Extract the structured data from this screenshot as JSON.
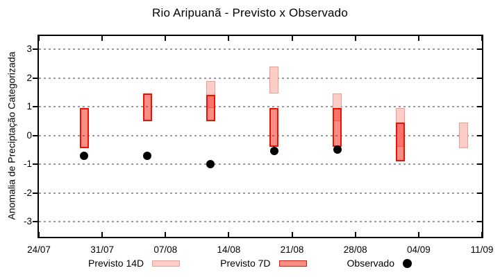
{
  "chart_data": {
    "type": "bar",
    "subtype": "floating-range-bars-with-scatter",
    "title": "Rio Aripuanã - Previsto x Observado",
    "ylabel": "Anomalia de Preciptação Categorizada",
    "xlabel": "",
    "ylim": [
      -3.5,
      3.5
    ],
    "yticks": [
      3,
      2,
      1,
      0,
      -1,
      -2,
      -3
    ],
    "grid": "horizontal dotted lines at each y tick",
    "x_axis_day_range": [
      0,
      49
    ],
    "xticks": [
      {
        "day": 0,
        "label": "24/07"
      },
      {
        "day": 7,
        "label": "31/07"
      },
      {
        "day": 14,
        "label": "07/08"
      },
      {
        "day": 21,
        "label": "14/08"
      },
      {
        "day": 28,
        "label": "21/08"
      },
      {
        "day": 35,
        "label": "28/08"
      },
      {
        "day": 42,
        "label": "04/09"
      },
      {
        "day": 49,
        "label": "11/09"
      }
    ],
    "series": [
      {
        "name": "Previsto 14D",
        "key": "p14",
        "type": "range",
        "points": [
          {
            "date": "12/08",
            "day": 19,
            "low": 0.95,
            "high": 1.9
          },
          {
            "date": "19/08",
            "day": 26,
            "low": 1.45,
            "high": 2.4
          },
          {
            "date": "26/08",
            "day": 33,
            "low": 0.5,
            "high": 1.45
          },
          {
            "date": "02/09",
            "day": 40,
            "low": -0.4,
            "high": 0.95
          },
          {
            "date": "09/09",
            "day": 47,
            "low": -0.45,
            "high": 0.45
          }
        ]
      },
      {
        "name": "Previsto 7D",
        "key": "p7",
        "type": "range",
        "points": [
          {
            "date": "29/07",
            "day": 5,
            "low": -0.45,
            "high": 0.95
          },
          {
            "date": "05/08",
            "day": 12,
            "low": 0.5,
            "high": 1.45
          },
          {
            "date": "12/08",
            "day": 19,
            "low": 0.5,
            "high": 1.4
          },
          {
            "date": "19/08",
            "day": 26,
            "low": -0.4,
            "high": 0.95
          },
          {
            "date": "26/08",
            "day": 33,
            "low": -0.4,
            "high": 0.95
          },
          {
            "date": "02/09",
            "day": 40,
            "low": -0.9,
            "high": 0.45
          }
        ]
      },
      {
        "name": "Observado",
        "key": "obs",
        "type": "scatter",
        "points": [
          {
            "date": "29/07",
            "day": 5,
            "value": -0.7
          },
          {
            "date": "05/08",
            "day": 12,
            "value": -0.7
          },
          {
            "date": "12/08",
            "day": 19,
            "value": -1.0
          },
          {
            "date": "19/08",
            "day": 26,
            "value": -0.55
          },
          {
            "date": "26/08",
            "day": 33,
            "value": -0.5
          }
        ]
      }
    ],
    "colors": {
      "prev14d_fill": "#fbcdc6",
      "prev14d_border": "#f19a91",
      "prev7d_fill_solid": "#fa8e84",
      "prev7d_border": "#ee1100",
      "overlap_fill": "#f3685e",
      "observado": "#000000",
      "grid": "#9a9a9a",
      "axis": "#000000"
    },
    "legend_position": "below chart, horizontal",
    "legend": [
      {
        "label": "Previsto 14D"
      },
      {
        "label": "Previsto 7D"
      },
      {
        "label": "Observado"
      }
    ]
  }
}
